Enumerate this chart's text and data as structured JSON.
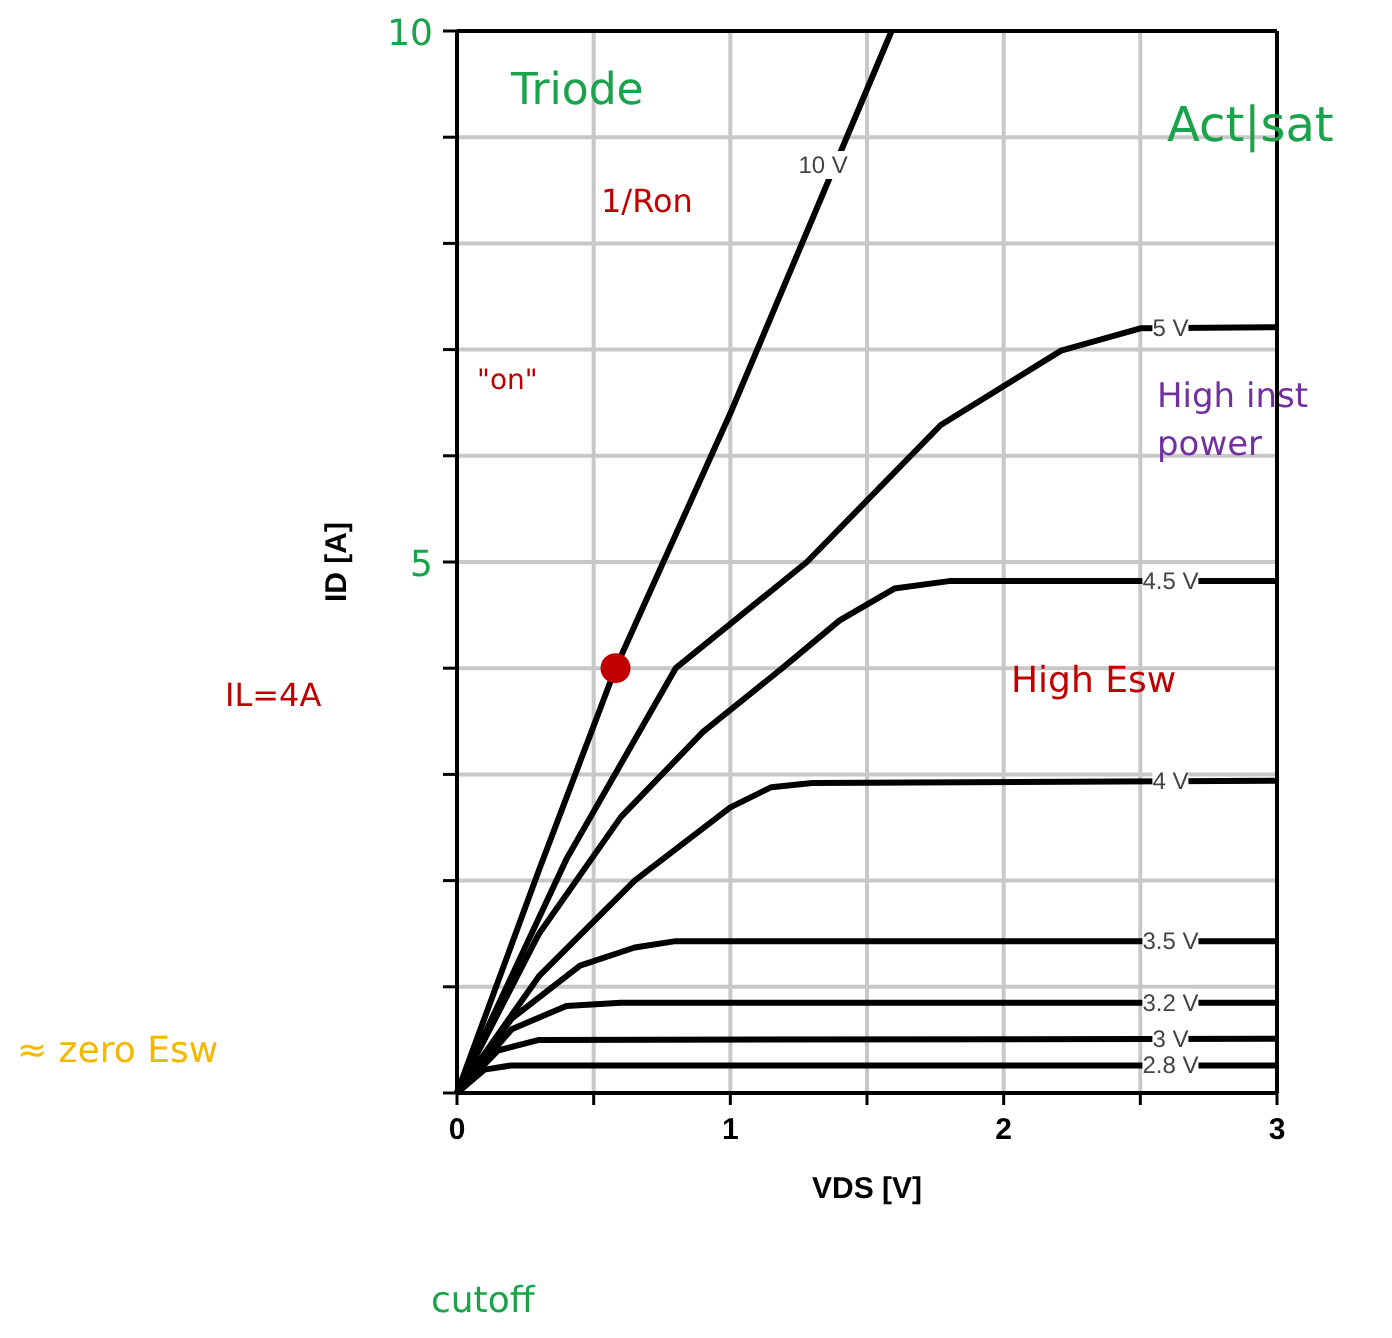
{
  "chart_data": {
    "type": "line",
    "xlabel": "VDS [V]",
    "ylabel": "ID [A]",
    "xlim": [
      0,
      3
    ],
    "ylim": [
      0,
      10
    ],
    "xticks": [
      0,
      {
        "value": 0.5,
        "label": null
      },
      1,
      {
        "value": 1.5,
        "label": null
      },
      2,
      {
        "value": 2.5,
        "label": null
      },
      3
    ],
    "yticks": [
      {
        "value": 0,
        "label": null
      },
      {
        "value": 1,
        "label": null
      },
      {
        "value": 2,
        "label": null
      },
      {
        "value": 3,
        "label": null
      },
      {
        "value": 4,
        "label": null
      },
      5,
      {
        "value": 6,
        "label": null
      },
      {
        "value": 7,
        "label": null
      },
      {
        "value": 8,
        "label": null
      },
      {
        "value": 9,
        "label": null
      },
      10
    ],
    "grid": true,
    "marker": "none",
    "line_style": "solid",
    "series": [
      {
        "name": "10 V",
        "color": "#000000",
        "x": [
          0,
          0.3,
          0.58,
          1.0,
          1.59
        ],
        "values": [
          0,
          2.1,
          4.0,
          6.4,
          10
        ]
      },
      {
        "name": "5 V",
        "color": "#000000",
        "x": [
          0,
          0.4,
          0.8,
          1.28,
          1.77,
          2.21,
          2.5,
          3
        ],
        "values": [
          0,
          2.2,
          4.0,
          5.0,
          6.29,
          6.99,
          7.2,
          7.21
        ]
      },
      {
        "name": "4.5 V",
        "color": "#000000",
        "x": [
          0,
          0.3,
          0.6,
          0.9,
          1.19,
          1.4,
          1.6,
          1.8,
          3
        ],
        "values": [
          0,
          1.5,
          2.6,
          3.4,
          4.0,
          4.45,
          4.75,
          4.82,
          4.82
        ]
      },
      {
        "name": "4 V",
        "color": "#000000",
        "x": [
          0,
          0.3,
          0.65,
          1.0,
          1.15,
          1.3,
          3
        ],
        "values": [
          0,
          1.1,
          2.0,
          2.69,
          2.88,
          2.92,
          2.94
        ]
      },
      {
        "name": "3.5 V",
        "color": "#000000",
        "x": [
          0,
          0.2,
          0.45,
          0.65,
          0.8,
          3
        ],
        "values": [
          0,
          0.7,
          1.2,
          1.37,
          1.43,
          1.43
        ]
      },
      {
        "name": "3.2 V",
        "color": "#000000",
        "x": [
          0,
          0.2,
          0.4,
          0.6,
          3
        ],
        "values": [
          0,
          0.6,
          0.82,
          0.85,
          0.85
        ]
      },
      {
        "name": "3 V",
        "color": "#000000",
        "x": [
          0,
          0.15,
          0.3,
          3
        ],
        "values": [
          0,
          0.4,
          0.5,
          0.51
        ]
      },
      {
        "name": "2.8 V",
        "color": "#000000",
        "x": [
          0,
          0.1,
          0.2,
          3
        ],
        "values": [
          0,
          0.22,
          0.26,
          0.26
        ]
      },
      {
        "type": "scatter",
        "marker": "circle",
        "color": "#c00000",
        "x": [
          0.58
        ],
        "values": [
          4.0
        ]
      }
    ],
    "annotations": [
      "Triode",
      "Act|sat",
      "1/Ron",
      "\"on\"",
      "High inst power",
      "IL=4A",
      "High Esw",
      "≈ zero Esw",
      "cutoff"
    ]
  }
}
